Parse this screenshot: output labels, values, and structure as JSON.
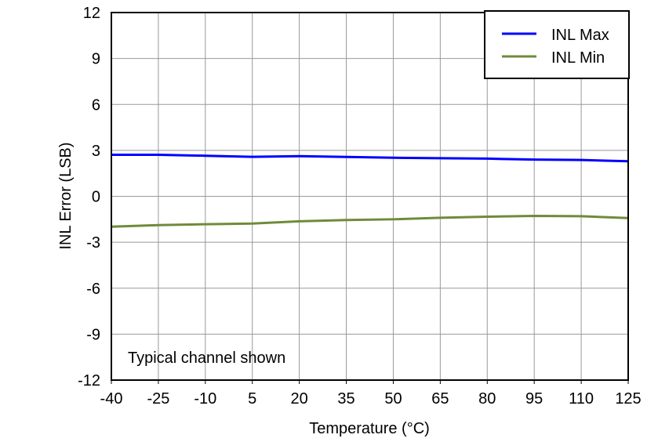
{
  "chart_data": {
    "type": "line",
    "title": "",
    "xlabel": "Temperature (°C)",
    "ylabel": "INL Error (LSB)",
    "xlim": [
      -40,
      125
    ],
    "ylim": [
      -12,
      12
    ],
    "xticks": [
      -40,
      -25,
      -10,
      5,
      20,
      35,
      50,
      65,
      80,
      95,
      110,
      125
    ],
    "yticks": [
      -12,
      -9,
      -6,
      -3,
      0,
      3,
      6,
      9,
      12
    ],
    "grid": true,
    "legend_position": "top-right",
    "annotation": "Typical channel shown",
    "x": [
      -40,
      -25,
      -10,
      5,
      20,
      35,
      50,
      65,
      80,
      95,
      110,
      125
    ],
    "series": [
      {
        "name": "INL Max",
        "color": "#0000ff",
        "values": [
          2.71,
          2.71,
          2.65,
          2.58,
          2.62,
          2.57,
          2.52,
          2.49,
          2.46,
          2.4,
          2.37,
          2.29
        ]
      },
      {
        "name": "INL Min",
        "color": "#6f8b3a",
        "values": [
          -1.98,
          -1.88,
          -1.82,
          -1.78,
          -1.63,
          -1.55,
          -1.5,
          -1.4,
          -1.33,
          -1.28,
          -1.3,
          -1.42
        ]
      }
    ]
  }
}
